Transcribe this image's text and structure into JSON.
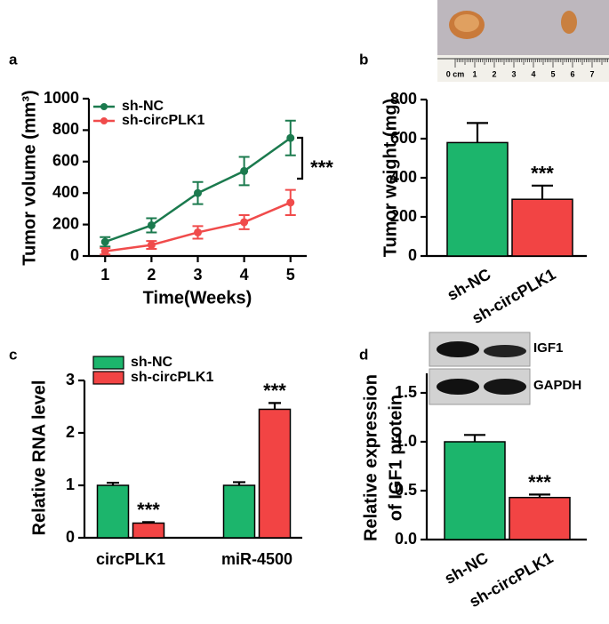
{
  "chart_data": [
    {
      "type": "line",
      "panel_label": "a",
      "xlabel": "Time(Weeks)",
      "ylabel": "Tumor volume (mm³)",
      "x": [
        1,
        2,
        3,
        4,
        5
      ],
      "xlim": [
        0.65,
        5.35
      ],
      "xticks": [
        1,
        2,
        3,
        4,
        5
      ],
      "ylim": [
        0,
        1000
      ],
      "yticks": [
        0,
        200,
        400,
        600,
        800,
        1000
      ],
      "series": [
        {
          "name": "sh-NC",
          "color": "#1b7a4e",
          "values": [
            90,
            195,
            400,
            540,
            750
          ],
          "errors": [
            30,
            45,
            70,
            90,
            110
          ]
        },
        {
          "name": "sh-circPLK1",
          "color": "#f04b4b",
          "values": [
            30,
            70,
            150,
            215,
            340
          ],
          "errors": [
            20,
            25,
            40,
            45,
            80
          ]
        }
      ],
      "annotations": [
        "***"
      ]
    },
    {
      "type": "bar",
      "panel_label": "b",
      "ylabel": "Tumor weight (mg)",
      "categories": [
        "sh-NC",
        "sh-circPLK1"
      ],
      "values": [
        580,
        290
      ],
      "errors": [
        100,
        70
      ],
      "colors": [
        "#1cb56c",
        "#f24444"
      ],
      "ylim": [
        0,
        800
      ],
      "yticks": [
        0,
        200,
        400,
        600,
        800
      ],
      "annotations": [
        "***"
      ],
      "photo_ruler_labels": [
        "0 cm",
        "1",
        "2",
        "3",
        "4",
        "5",
        "6",
        "7"
      ]
    },
    {
      "type": "bar",
      "panel_label": "c",
      "ylabel": "Relative RNA level",
      "categories": [
        "circPLK1",
        "miR-4500"
      ],
      "ylim": [
        0,
        3
      ],
      "yticks": [
        0,
        1,
        2,
        3
      ],
      "series": [
        {
          "name": "sh-NC",
          "color": "#1cb56c",
          "values": [
            1.0,
            1.0
          ],
          "errors": [
            0.05,
            0.06
          ]
        },
        {
          "name": "sh-circPLK1",
          "color": "#f24444",
          "values": [
            0.28,
            2.45
          ],
          "errors": [
            0.02,
            0.12
          ]
        }
      ],
      "annotations": [
        "***",
        "***"
      ]
    },
    {
      "type": "bar",
      "panel_label": "d",
      "ylabel": [
        "Relative expression",
        "of IGF1 protein"
      ],
      "categories": [
        "sh-NC",
        "sh-circPLK1"
      ],
      "values": [
        1.0,
        0.43
      ],
      "errors": [
        0.07,
        0.03
      ],
      "colors": [
        "#1cb56c",
        "#f24444"
      ],
      "ylim": [
        0,
        1.7
      ],
      "yticks": [
        {
          "value": 0,
          "label": "0.0"
        },
        0.5,
        {
          "value": 1,
          "label": "1.0"
        },
        1.5
      ],
      "annotations": [
        "***"
      ],
      "blot_labels": [
        "IGF1",
        "GAPDH"
      ]
    }
  ]
}
